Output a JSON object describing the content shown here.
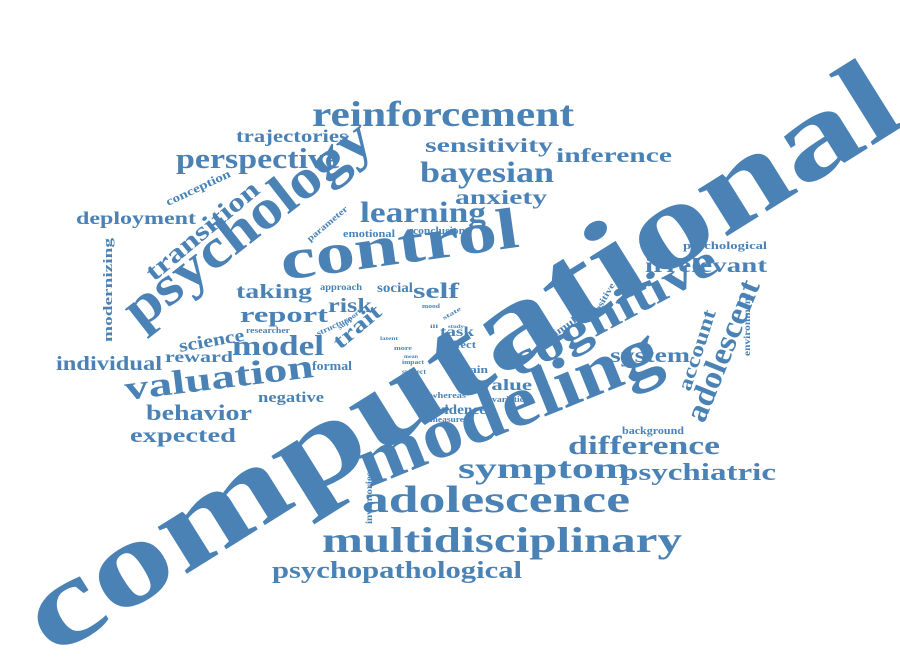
{
  "colors": {
    "word": "#4a82b6",
    "background": "#ffffff"
  },
  "words": [
    "computational",
    "modeling",
    "control",
    "psychology",
    "cognitive",
    "adolescence",
    "multidisciplinary",
    "reinforcement",
    "valuation",
    "adolescent",
    "symptom",
    "bayesian",
    "perspective",
    "model",
    "transition",
    "learning",
    "difference",
    "psychiatric",
    "psychopathological",
    "behavior",
    "individual",
    "anxiety",
    "inference",
    "sensitivity",
    "expected",
    "report",
    "irrelevant",
    "trait",
    "system",
    "deployment",
    "trajectories",
    "taking",
    "science",
    "account",
    "self",
    "reward",
    "risk",
    "value",
    "negative",
    "modernizing",
    "evidence",
    "task",
    "conception",
    "social",
    "formal",
    "explain",
    "psychological",
    "emotional",
    "parameter",
    "conclusion",
    "environment",
    "stimulus",
    "positive",
    "background",
    "inventories",
    "effect",
    "structure",
    "approach",
    "researcher",
    "support",
    "whereas",
    "variation",
    "measure",
    "subject",
    "impact",
    "mood",
    "more",
    "state",
    "study",
    "latent",
    "mean",
    "ill"
  ]
}
